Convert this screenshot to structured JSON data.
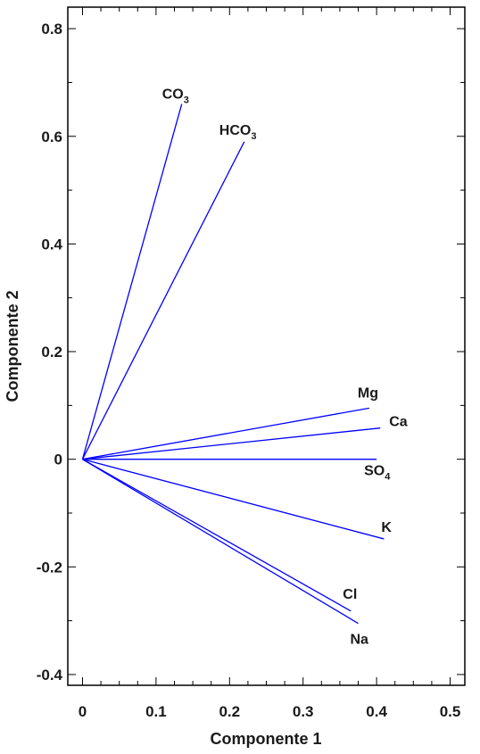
{
  "chart_data": {
    "type": "biplot",
    "xlabel": "Componente 1",
    "ylabel": "Componente 2",
    "xlim": [
      -0.02,
      0.52
    ],
    "ylim": [
      -0.42,
      0.84
    ],
    "xticks": [
      0,
      0.1,
      0.2,
      0.3,
      0.4,
      0.5
    ],
    "xtick_labels": [
      "0",
      "0.1",
      "0.2",
      "0.3",
      "0.4",
      "0.5"
    ],
    "yticks": [
      -0.4,
      -0.2,
      0,
      0.2,
      0.4,
      0.6,
      0.8
    ],
    "ytick_labels": [
      "-0.4",
      "-0.2",
      "0",
      "0.2",
      "0.4",
      "0.6",
      "0.8"
    ],
    "grid": false,
    "line_color": "#0000ff",
    "vectors": [
      {
        "label": "CO",
        "sub": "3",
        "x": 0.135,
        "y": 0.66
      },
      {
        "label": "HCO",
        "sub": "3",
        "x": 0.22,
        "y": 0.59
      },
      {
        "label": "Mg",
        "sub": "",
        "x": 0.39,
        "y": 0.095
      },
      {
        "label": "Ca",
        "sub": "",
        "x": 0.405,
        "y": 0.058
      },
      {
        "label": "SO",
        "sub": "4",
        "x": 0.4,
        "y": 0.0
      },
      {
        "label": "K",
        "sub": "",
        "x": 0.41,
        "y": -0.148
      },
      {
        "label": "Cl",
        "sub": "",
        "x": 0.365,
        "y": -0.282
      },
      {
        "label": "Na",
        "sub": "",
        "x": 0.375,
        "y": -0.305
      }
    ]
  }
}
